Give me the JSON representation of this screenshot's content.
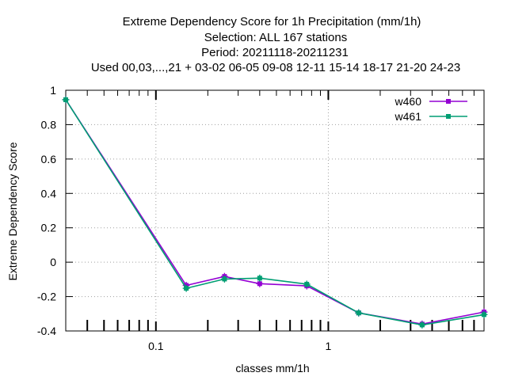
{
  "chart_data": {
    "type": "line",
    "title_lines": [
      "Extreme Dependency Score  for 1h Precipitation (mm/1h)",
      "Selection: ALL    167 stations",
      "Period: 20211118-20211231",
      "Used  00,03,...,21  + 03-02 06-05 09-08 12-11 15-14 18-17 21-20 24-23"
    ],
    "xlabel": "classes mm/1h",
    "ylabel": "Extreme Dependency Score",
    "x_scale": "log",
    "xlim": [
      0.03,
      8
    ],
    "ylim": [
      -0.4,
      1
    ],
    "x_tick_labels": [
      {
        "value": 0.1,
        "label": "0.1"
      },
      {
        "value": 1,
        "label": "1"
      }
    ],
    "y_ticks": [
      1,
      0.8,
      0.6,
      0.4,
      0.2,
      0,
      -0.2,
      -0.4
    ],
    "y_tick_labels": [
      "1",
      "0.8",
      "0.6",
      "0.4",
      "0.2",
      "0",
      "-0.2",
      "-0.4"
    ],
    "grid": true,
    "legend_position": "top-right",
    "series": [
      {
        "name": "w460",
        "color": "#9400d3",
        "x": [
          0.03,
          0.15,
          0.25,
          0.4,
          0.75,
          1.5,
          3.5,
          8
        ],
        "y": [
          0.945,
          -0.135,
          -0.083,
          -0.125,
          -0.138,
          -0.295,
          -0.36,
          -0.29
        ]
      },
      {
        "name": "w461",
        "color": "#009e73",
        "x": [
          0.03,
          0.15,
          0.25,
          0.4,
          0.75,
          1.5,
          3.5,
          8
        ],
        "y": [
          0.945,
          -0.152,
          -0.098,
          -0.093,
          -0.128,
          -0.295,
          -0.365,
          -0.305
        ]
      }
    ]
  }
}
